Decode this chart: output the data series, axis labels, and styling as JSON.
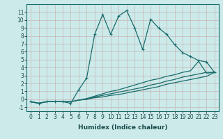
{
  "xlabel": "Humidex (Indice chaleur)",
  "background_color": "#cceaea",
  "line_color": "#1a6b6b",
  "xlim": [
    -0.5,
    23.5
  ],
  "ylim": [
    -1.5,
    12
  ],
  "xtick_labels": [
    "0",
    "1",
    "2",
    "3",
    "4",
    "5",
    "6",
    "7",
    "8",
    "9",
    "10",
    "11",
    "12",
    "13",
    "14",
    "15",
    "16",
    "17",
    "18",
    "19",
    "20",
    "21",
    "22",
    "23"
  ],
  "ytick_values": [
    -1,
    0,
    1,
    2,
    3,
    4,
    5,
    6,
    7,
    8,
    9,
    10,
    11
  ],
  "series": [
    {
      "x": [
        0,
        1,
        2,
        3,
        4,
        5,
        6,
        7,
        8,
        9,
        10,
        11,
        12,
        13,
        14,
        15,
        16,
        17,
        18,
        19,
        20,
        21,
        22,
        23
      ],
      "y": [
        -0.3,
        -0.5,
        -0.3,
        -0.3,
        -0.3,
        -0.5,
        1.2,
        2.7,
        8.2,
        10.7,
        8.2,
        10.5,
        11.2,
        9.0,
        6.3,
        10.1,
        9.0,
        8.2,
        6.9,
        5.9,
        5.4,
        4.9,
        4.7,
        3.4
      ],
      "marker": true
    },
    {
      "x": [
        0,
        1,
        2,
        3,
        4,
        5,
        6,
        7,
        8,
        9,
        10,
        11,
        12,
        13,
        14,
        15,
        16,
        17,
        18,
        19,
        20,
        21,
        22,
        23
      ],
      "y": [
        -0.3,
        -0.5,
        -0.3,
        -0.3,
        -0.3,
        -0.3,
        -0.1,
        0.1,
        0.4,
        0.7,
        1.0,
        1.2,
        1.5,
        1.8,
        2.1,
        2.4,
        2.6,
        2.9,
        3.1,
        3.4,
        3.6,
        4.8,
        3.3,
        3.4
      ],
      "marker": false
    },
    {
      "x": [
        0,
        1,
        2,
        3,
        4,
        5,
        6,
        7,
        8,
        9,
        10,
        11,
        12,
        13,
        14,
        15,
        16,
        17,
        18,
        19,
        20,
        21,
        22,
        23
      ],
      "y": [
        -0.3,
        -0.5,
        -0.3,
        -0.3,
        -0.3,
        -0.3,
        -0.1,
        0.0,
        0.3,
        0.5,
        0.7,
        0.9,
        1.1,
        1.3,
        1.5,
        1.8,
        2.0,
        2.3,
        2.5,
        2.8,
        3.0,
        3.2,
        3.4,
        3.4
      ],
      "marker": false
    },
    {
      "x": [
        0,
        1,
        2,
        3,
        4,
        5,
        6,
        7,
        8,
        9,
        10,
        11,
        12,
        13,
        14,
        15,
        16,
        17,
        18,
        19,
        20,
        21,
        22,
        23
      ],
      "y": [
        -0.3,
        -0.5,
        -0.3,
        -0.3,
        -0.3,
        -0.3,
        -0.1,
        0.0,
        0.2,
        0.3,
        0.5,
        0.6,
        0.8,
        1.0,
        1.2,
        1.4,
        1.6,
        1.9,
        2.1,
        2.3,
        2.5,
        2.7,
        2.9,
        3.4
      ],
      "marker": false
    }
  ]
}
